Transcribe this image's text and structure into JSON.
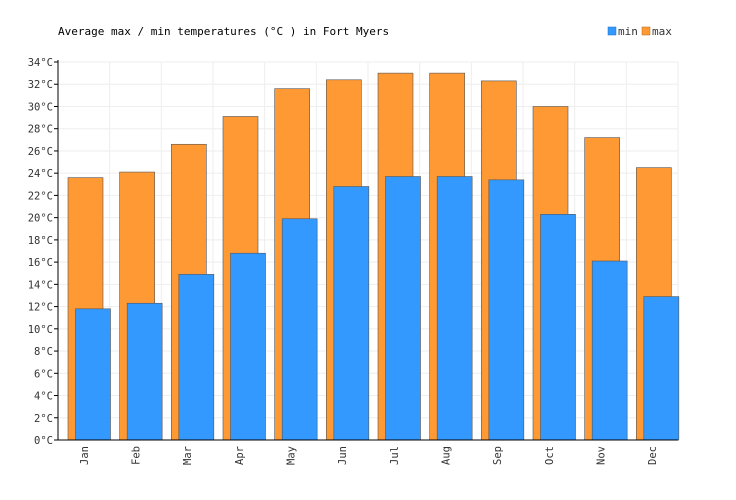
{
  "chart_data": {
    "type": "bar",
    "title": "Average max / min temperatures (°C ) in Fort Myers",
    "categories": [
      "Jan",
      "Feb",
      "Mar",
      "Apr",
      "May",
      "Jun",
      "Jul",
      "Aug",
      "Sep",
      "Oct",
      "Nov",
      "Dec"
    ],
    "series": [
      {
        "name": "max",
        "color": "#ff9933",
        "values": [
          23.6,
          24.1,
          26.6,
          29.1,
          31.6,
          32.4,
          33.0,
          33.0,
          32.3,
          30.0,
          27.2,
          24.5
        ]
      },
      {
        "name": "min",
        "color": "#3399ff",
        "values": [
          11.8,
          12.3,
          14.9,
          16.8,
          19.9,
          22.8,
          23.7,
          23.7,
          23.4,
          20.3,
          16.1,
          12.9
        ]
      }
    ],
    "y_ticks": [
      "0°C",
      "2°C",
      "4°C",
      "6°C",
      "8°C",
      "10°C",
      "12°C",
      "14°C",
      "16°C",
      "18°C",
      "20°C",
      "22°C",
      "24°C",
      "26°C",
      "28°C",
      "30°C",
      "32°C",
      "34°C"
    ],
    "ylim": [
      0,
      34
    ],
    "xlabel": "",
    "ylabel": "",
    "grid": true,
    "legend": {
      "position": "top-right",
      "entries": [
        "min",
        "max"
      ]
    }
  }
}
